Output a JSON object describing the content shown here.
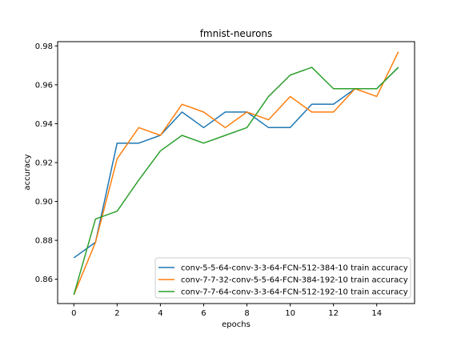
{
  "chart_data": {
    "type": "line",
    "title": "fmnist-neurons",
    "xlabel": "epochs",
    "ylabel": "accuracy",
    "xlim": [
      -0.75,
      15.75
    ],
    "ylim": [
      0.8475,
      0.9822
    ],
    "xticks": [
      0,
      2,
      4,
      6,
      8,
      10,
      12,
      14
    ],
    "yticks": [
      0.86,
      0.88,
      0.9,
      0.92,
      0.94,
      0.96,
      0.98
    ],
    "ytick_labels": [
      "0.86",
      "0.88",
      "0.90",
      "0.92",
      "0.94",
      "0.96",
      "0.98"
    ],
    "legend_position": "lower-right",
    "grid": false,
    "x": [
      0,
      1,
      2,
      3,
      4,
      5,
      6,
      7,
      8,
      9,
      10,
      11,
      12,
      13,
      14,
      15
    ],
    "series": [
      {
        "name": "conv-5-5-64-conv-3-3-64-FCN-512-384-10 train accuracy",
        "color": "#1f77b4",
        "values": [
          0.871,
          0.879,
          0.93,
          0.93,
          0.934,
          0.946,
          0.938,
          0.946,
          0.946,
          0.938,
          0.938,
          0.95,
          0.95,
          0.958,
          0.958,
          0.969
        ]
      },
      {
        "name": "conv-7-7-32-conv-5-5-64-FCN-384-192-10 train accuracy",
        "color": "#ff7f0e",
        "values": [
          0.852,
          0.879,
          0.922,
          0.938,
          0.934,
          0.95,
          0.946,
          0.938,
          0.946,
          0.942,
          0.954,
          0.946,
          0.946,
          0.958,
          0.954,
          0.977
        ]
      },
      {
        "name": "conv-7-7-64-conv-3-3-64-FCN-512-192-10 train accuracy",
        "color": "#2ca02c",
        "values": [
          0.852,
          0.891,
          0.895,
          0.911,
          0.926,
          0.934,
          0.93,
          0.934,
          0.938,
          0.954,
          0.965,
          0.969,
          0.958,
          0.958,
          0.958,
          0.969
        ]
      }
    ]
  }
}
